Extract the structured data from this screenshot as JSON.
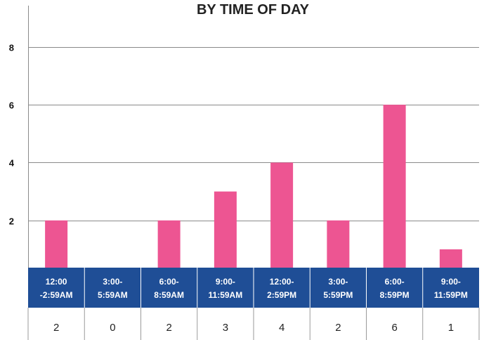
{
  "chart_data": {
    "type": "bar",
    "title": "BY TIME OF DAY",
    "categories": [
      [
        "12:00",
        "-2:59AM"
      ],
      [
        "3:00-",
        "5:59AM"
      ],
      [
        "6:00-",
        "8:59AM"
      ],
      [
        "9:00-",
        "11:59AM"
      ],
      [
        "12:00-",
        "2:59PM"
      ],
      [
        "3:00-",
        "5:59PM"
      ],
      [
        "6:00-",
        "8:59PM"
      ],
      [
        "9:00-",
        "11:59PM"
      ]
    ],
    "values": [
      2,
      0,
      2,
      3,
      4,
      2,
      6,
      1
    ],
    "table_values": [
      "2",
      "0",
      "2",
      "3",
      "4",
      "2",
      "6",
      "1"
    ],
    "yticks": [
      2,
      4,
      6,
      8
    ],
    "ylim": [
      0.5,
      8.7
    ],
    "grid": true,
    "colors": {
      "bar": "#ed5592",
      "header_band": "#1f4e96",
      "grid": "#8a8a8a",
      "table_line": "#9a9a9a"
    }
  }
}
